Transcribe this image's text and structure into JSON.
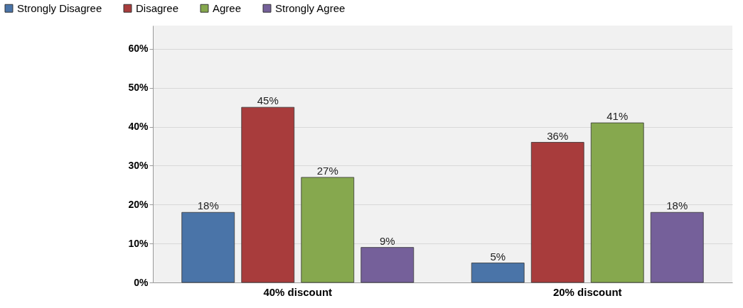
{
  "chart_data": {
    "type": "bar",
    "categories": [
      "40% discount",
      "20% discount"
    ],
    "series": [
      {
        "name": "Strongly Disagree",
        "color": "#4a74a8",
        "values": [
          18,
          5
        ],
        "value_labels": [
          "18%",
          "5%"
        ]
      },
      {
        "name": "Disagree",
        "color": "#a83c3c",
        "values": [
          45,
          36
        ],
        "value_labels": [
          "45%",
          "36%"
        ]
      },
      {
        "name": "Agree",
        "color": "#86a84e",
        "values": [
          27,
          41
        ],
        "value_labels": [
          "27%",
          "41%"
        ]
      },
      {
        "name": "Strongly Agree",
        "color": "#75609a",
        "values": [
          9,
          18
        ],
        "value_labels": [
          "9%",
          "18%"
        ]
      }
    ],
    "ylim": [
      0,
      66
    ],
    "yticks": [
      {
        "value": 0,
        "label": "0%"
      },
      {
        "value": 10,
        "label": "10%"
      },
      {
        "value": 20,
        "label": "20%"
      },
      {
        "value": 30,
        "label": "30%"
      },
      {
        "value": 40,
        "label": "40%"
      },
      {
        "value": 50,
        "label": "50%"
      },
      {
        "value": 60,
        "label": "60%"
      }
    ],
    "grid": "y",
    "legend": "top left"
  }
}
